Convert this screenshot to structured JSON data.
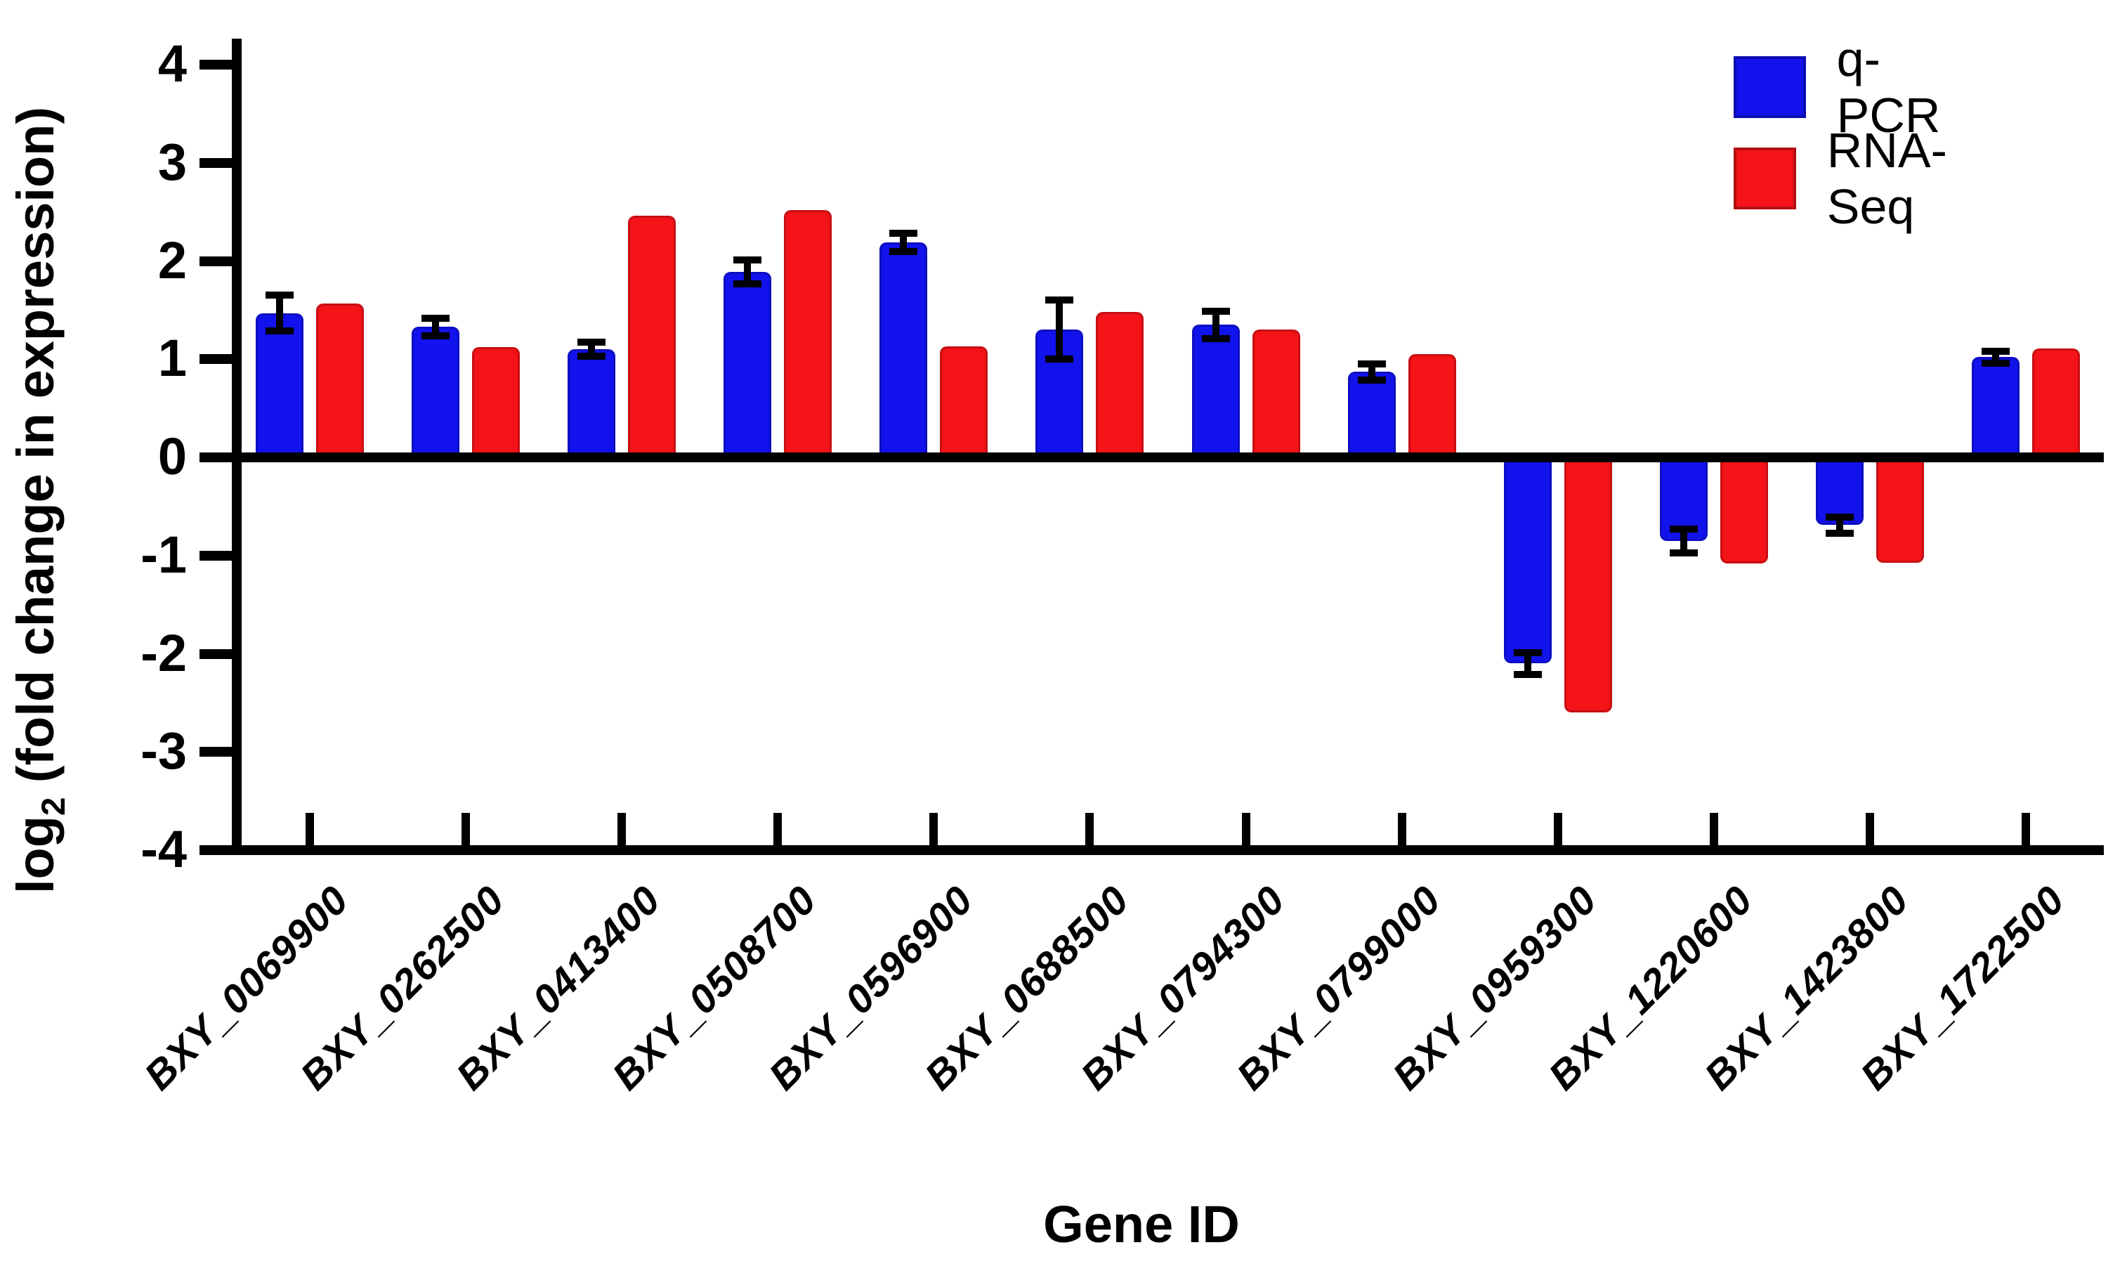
{
  "chart_data": {
    "type": "bar",
    "title": "",
    "xlabel": "Gene ID",
    "ylabel_base": "log",
    "ylabel_sub": "2",
    "ylabel_rest": " (fold change in expression)",
    "ylim": [
      -4,
      4
    ],
    "yticks": [
      4,
      3,
      2,
      1,
      0,
      -1,
      -2,
      -3,
      -4
    ],
    "grid": false,
    "legend_position": "top-right",
    "axis_color": "#000000",
    "categories": [
      "BXY_0069900",
      "BXY_0262500",
      "BXY_0413400",
      "BXY_0508700",
      "BXY_0596900",
      "BXY_0688500",
      "BXY_0794300",
      "BXY_0799000",
      "BXY_0959300",
      "BXY_1220600",
      "BXY_1423800",
      "BXY_1722500"
    ],
    "series": [
      {
        "name": "q-PCR",
        "color": "#1212EC",
        "values": [
          1.47,
          1.33,
          1.1,
          1.89,
          2.19,
          1.3,
          1.35,
          0.87,
          -2.1,
          -0.85,
          -0.69,
          1.02
        ],
        "errors": [
          0.18,
          0.09,
          0.07,
          0.12,
          0.09,
          0.3,
          0.14,
          0.08,
          0.11,
          0.12,
          0.08,
          0.06
        ]
      },
      {
        "name": "RNA-Seq",
        "color": "#F31318",
        "values": [
          1.57,
          1.12,
          2.46,
          2.52,
          1.13,
          1.48,
          1.3,
          1.05,
          -2.6,
          -1.08,
          -1.07,
          1.11
        ],
        "errors": []
      }
    ]
  }
}
